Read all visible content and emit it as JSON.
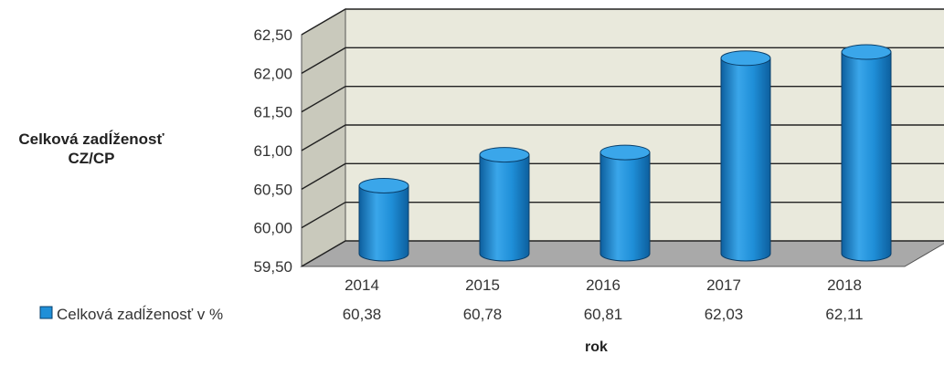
{
  "chart_data": {
    "type": "bar",
    "style": "3d-cylinder",
    "categories": [
      "2014",
      "2015",
      "2016",
      "2017",
      "2018"
    ],
    "series": [
      {
        "name": "Celková zadĺženosť v %",
        "values": [
          60.38,
          60.78,
          60.81,
          62.03,
          62.11
        ],
        "value_labels": [
          "60,38",
          "60,78",
          "60,81",
          "62,03",
          "62,11"
        ],
        "color": "#1f8fd8"
      }
    ],
    "ylabel_lines": [
      "Celková zadĺženosť",
      "CZ/CP"
    ],
    "xlabel": "rok",
    "ylim": [
      59.5,
      62.5
    ],
    "yticks": [
      59.5,
      60.0,
      60.5,
      61.0,
      61.5,
      62.0,
      62.5
    ],
    "ytick_labels": [
      "59,50",
      "60,00",
      "60,50",
      "61,00",
      "61,50",
      "62,00",
      "62,50"
    ],
    "grid": true,
    "legend_placement": "bottom-left, as data table row",
    "colors": {
      "bar": "#1f8fd8",
      "bar_dark": "#0d5f9e",
      "bar_top": "#3aa6ea",
      "wall": "#e9e9dc",
      "floor": "#a9a9a9",
      "left_wall": "#c9c9bc"
    }
  }
}
